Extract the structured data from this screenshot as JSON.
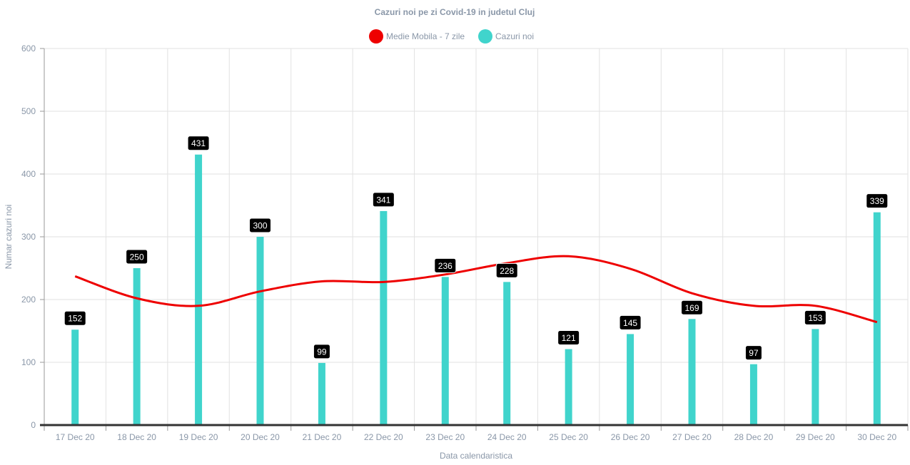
{
  "chart_data": {
    "type": "bar",
    "title": "Cazuri noi pe zi Covid-19 in judetul Cluj",
    "xlabel": "Data calendaristica",
    "ylabel": "Numar cazuri noi",
    "ylim": [
      0,
      600
    ],
    "yticks": [
      0,
      100,
      200,
      300,
      400,
      500,
      600
    ],
    "grid": true,
    "legend_position": "top",
    "categories": [
      "17 Dec 20",
      "18 Dec 20",
      "19 Dec 20",
      "20 Dec 20",
      "21 Dec 20",
      "22 Dec 20",
      "23 Dec 20",
      "24 Dec 20",
      "25 Dec 20",
      "26 Dec 20",
      "27 Dec 20",
      "28 Dec 20",
      "29 Dec 20",
      "30 Dec 20"
    ],
    "series": [
      {
        "name": "Medie Mobila - 7 zile",
        "type": "line",
        "color": "#ee0000",
        "values": [
          237,
          202,
          190,
          213,
          229,
          228,
          240,
          258,
          269,
          249,
          210,
          190,
          190,
          164
        ]
      },
      {
        "name": "Cazuri noi",
        "type": "bar",
        "color": "#40d4cc",
        "values": [
          152,
          250,
          431,
          300,
          99,
          341,
          236,
          228,
          121,
          145,
          169,
          97,
          153,
          339
        ]
      }
    ]
  }
}
